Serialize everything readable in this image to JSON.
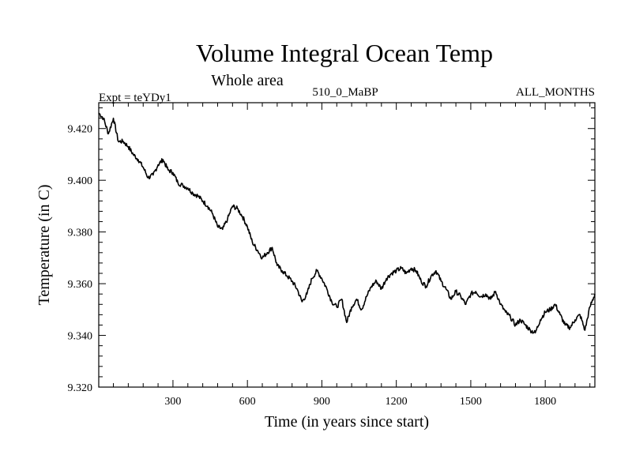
{
  "chart_data": {
    "type": "line",
    "title": "Volume Integral Ocean Temp",
    "subtitle": "Whole area",
    "left_label": "Expt = teYDy1",
    "center_label": "510_0_MaBP",
    "right_label": "ALL_MONTHS",
    "xlabel": "Time (in years since start)",
    "ylabel": "Temperature (in C)",
    "xlim": [
      1,
      2000
    ],
    "ylim": [
      9.32,
      9.43
    ],
    "x_ticks": [
      300,
      600,
      900,
      1200,
      1500,
      1800
    ],
    "x_tick_labels": [
      "300",
      "600",
      "900",
      "1200",
      "1500",
      "1800"
    ],
    "y_ticks": [
      9.32,
      9.34,
      9.36,
      9.38,
      9.4,
      9.42
    ],
    "y_tick_labels": [
      "9.320",
      "9.340",
      "9.360",
      "9.380",
      "9.400",
      "9.420"
    ],
    "grid": false,
    "series": [
      {
        "name": "Volume Integral Ocean Temp",
        "color": "#000000",
        "x": [
          1,
          20,
          40,
          60,
          80,
          100,
          120,
          140,
          160,
          180,
          200,
          220,
          240,
          260,
          280,
          300,
          320,
          340,
          360,
          380,
          400,
          420,
          440,
          460,
          480,
          500,
          520,
          540,
          560,
          580,
          600,
          620,
          640,
          660,
          680,
          700,
          720,
          740,
          760,
          780,
          800,
          820,
          840,
          860,
          880,
          900,
          920,
          940,
          960,
          980,
          1000,
          1020,
          1040,
          1060,
          1080,
          1100,
          1120,
          1140,
          1160,
          1180,
          1200,
          1220,
          1240,
          1260,
          1280,
          1300,
          1320,
          1340,
          1360,
          1380,
          1400,
          1420,
          1440,
          1460,
          1480,
          1500,
          1520,
          1540,
          1560,
          1580,
          1600,
          1620,
          1640,
          1660,
          1680,
          1700,
          1720,
          1740,
          1760,
          1780,
          1800,
          1820,
          1840,
          1860,
          1880,
          1900,
          1920,
          1940,
          1960,
          1980,
          2000
        ],
        "values": [
          9.426,
          9.424,
          9.418,
          9.424,
          9.415,
          9.415,
          9.413,
          9.41,
          9.408,
          9.405,
          9.401,
          9.402,
          9.406,
          9.408,
          9.404,
          9.403,
          9.399,
          9.398,
          9.397,
          9.395,
          9.394,
          9.392,
          9.39,
          9.387,
          9.382,
          9.381,
          9.385,
          9.39,
          9.389,
          9.386,
          9.382,
          9.376,
          9.373,
          9.37,
          9.372,
          9.374,
          9.367,
          9.365,
          9.363,
          9.361,
          9.358,
          9.353,
          9.356,
          9.362,
          9.365,
          9.362,
          9.358,
          9.353,
          9.351,
          9.354,
          9.345,
          9.351,
          9.354,
          9.35,
          9.355,
          9.359,
          9.361,
          9.358,
          9.362,
          9.364,
          9.365,
          9.366,
          9.364,
          9.366,
          9.365,
          9.361,
          9.359,
          9.363,
          9.365,
          9.361,
          9.358,
          9.354,
          9.357,
          9.355,
          9.352,
          9.356,
          9.357,
          9.355,
          9.356,
          9.354,
          9.357,
          9.352,
          9.349,
          9.347,
          9.344,
          9.346,
          9.344,
          9.342,
          9.341,
          9.346,
          9.349,
          9.35,
          9.352,
          9.348,
          9.344,
          9.343,
          9.346,
          9.348,
          9.342,
          9.351,
          9.356
        ]
      }
    ]
  }
}
